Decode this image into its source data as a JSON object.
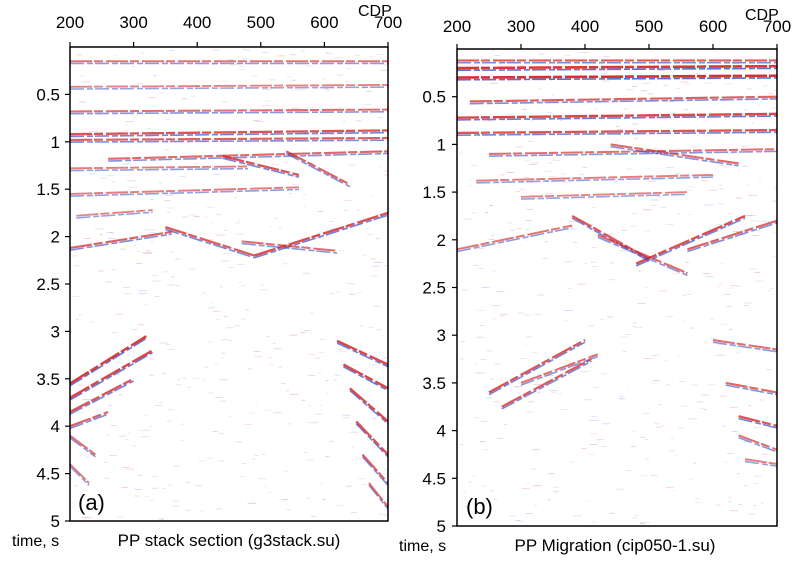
{
  "chart_data": [
    {
      "type": "heatmap",
      "panel_label": "(a)",
      "title": "PP stack section (g3stack.su)",
      "xlabel": "CDP",
      "ylabel": "time, s",
      "xlim": [
        200,
        700
      ],
      "ylim": [
        0,
        5
      ],
      "y_inverted": true,
      "x_axis_position": "top",
      "x_ticks": [
        200,
        300,
        400,
        500,
        600,
        700
      ],
      "x_tick_labels": [
        "200",
        "300",
        "400",
        "500",
        "600",
        "700"
      ],
      "y_ticks": [
        0.5,
        1,
        1.5,
        2,
        2.5,
        3,
        3.5,
        4,
        4.5,
        5
      ],
      "y_tick_labels": [
        "0.5",
        "1",
        "1.5",
        "2",
        "2.5",
        "3",
        "3.5",
        "4",
        "4.5",
        "5"
      ],
      "colormap": {
        "positive": "#d42020",
        "negative": "#3a4fc8",
        "zero": "#ffffff"
      },
      "events": [
        {
          "cdp": [
            200,
            700
          ],
          "t": [
            0.15,
            0.15
          ],
          "amp": 0.45
        },
        {
          "cdp": [
            200,
            700
          ],
          "t": [
            0.42,
            0.4
          ],
          "amp": 0.35
        },
        {
          "cdp": [
            200,
            700
          ],
          "t": [
            0.68,
            0.66
          ],
          "amp": 0.5
        },
        {
          "cdp": [
            200,
            700
          ],
          "t": [
            0.92,
            0.88
          ],
          "amp": 0.7
        },
        {
          "cdp": [
            200,
            700
          ],
          "t": [
            0.98,
            0.96
          ],
          "amp": 0.6
        },
        {
          "cdp": [
            260,
            700
          ],
          "t": [
            1.18,
            1.1
          ],
          "amp": 0.55
        },
        {
          "cdp": [
            200,
            480
          ],
          "t": [
            1.28,
            1.26
          ],
          "amp": 0.4
        },
        {
          "cdp": [
            440,
            560
          ],
          "t": [
            1.15,
            1.35
          ],
          "amp": 0.7
        },
        {
          "cdp": [
            540,
            640
          ],
          "t": [
            1.1,
            1.45
          ],
          "amp": 0.6
        },
        {
          "cdp": [
            200,
            560
          ],
          "t": [
            1.55,
            1.48
          ],
          "amp": 0.4
        },
        {
          "cdp": [
            210,
            330
          ],
          "t": [
            1.78,
            1.72
          ],
          "amp": 0.35
        },
        {
          "cdp": [
            200,
            360
          ],
          "t": [
            2.12,
            1.95
          ],
          "amp": 0.6
        },
        {
          "cdp": [
            350,
            490
          ],
          "t": [
            1.9,
            2.2
          ],
          "amp": 0.65
        },
        {
          "cdp": [
            490,
            700
          ],
          "t": [
            2.2,
            1.75
          ],
          "amp": 0.75
        },
        {
          "cdp": [
            470,
            620
          ],
          "t": [
            2.05,
            2.15
          ],
          "amp": 0.5
        },
        {
          "cdp": [
            200,
            320
          ],
          "t": [
            3.55,
            3.05
          ],
          "amp": 0.85
        },
        {
          "cdp": [
            200,
            330
          ],
          "t": [
            3.7,
            3.2
          ],
          "amp": 0.8
        },
        {
          "cdp": [
            200,
            300
          ],
          "t": [
            3.85,
            3.5
          ],
          "amp": 0.7
        },
        {
          "cdp": [
            200,
            260
          ],
          "t": [
            4.0,
            3.85
          ],
          "amp": 0.6
        },
        {
          "cdp": [
            620,
            700
          ],
          "t": [
            3.1,
            3.35
          ],
          "amp": 0.8
        },
        {
          "cdp": [
            630,
            700
          ],
          "t": [
            3.35,
            3.6
          ],
          "amp": 0.8
        },
        {
          "cdp": [
            640,
            700
          ],
          "t": [
            3.6,
            3.95
          ],
          "amp": 0.75
        },
        {
          "cdp": [
            650,
            700
          ],
          "t": [
            3.95,
            4.3
          ],
          "amp": 0.7
        },
        {
          "cdp": [
            660,
            700
          ],
          "t": [
            4.3,
            4.6
          ],
          "amp": 0.6
        },
        {
          "cdp": [
            670,
            700
          ],
          "t": [
            4.6,
            4.85
          ],
          "amp": 0.5
        },
        {
          "cdp": [
            200,
            240
          ],
          "t": [
            4.1,
            4.3
          ],
          "amp": 0.5
        },
        {
          "cdp": [
            200,
            230
          ],
          "t": [
            4.4,
            4.6
          ],
          "amp": 0.4
        }
      ]
    },
    {
      "type": "heatmap",
      "panel_label": "(b)",
      "title": "PP Migration (cip050-1.su)",
      "xlabel": "CDP",
      "ylabel": "time, s",
      "xlim": [
        200,
        700
      ],
      "ylim": [
        0,
        5
      ],
      "y_inverted": true,
      "x_axis_position": "top",
      "x_ticks": [
        200,
        300,
        400,
        500,
        600,
        700
      ],
      "x_tick_labels": [
        "200",
        "300",
        "400",
        "500",
        "600",
        "700"
      ],
      "y_ticks": [
        0.5,
        1,
        1.5,
        2,
        2.5,
        3,
        3.5,
        4,
        4.5,
        5
      ],
      "y_tick_labels": [
        "0.5",
        "1",
        "1.5",
        "2",
        "2.5",
        "3",
        "3.5",
        "4",
        "4.5",
        "5"
      ],
      "colormap": {
        "positive": "#d42020",
        "negative": "#3a4fc8",
        "zero": "#ffffff"
      },
      "events": [
        {
          "cdp": [
            200,
            700
          ],
          "t": [
            0.12,
            0.12
          ],
          "amp": 0.6
        },
        {
          "cdp": [
            200,
            700
          ],
          "t": [
            0.2,
            0.18
          ],
          "amp": 0.9
        },
        {
          "cdp": [
            200,
            700
          ],
          "t": [
            0.3,
            0.28
          ],
          "amp": 0.95
        },
        {
          "cdp": [
            220,
            700
          ],
          "t": [
            0.55,
            0.5
          ],
          "amp": 0.6
        },
        {
          "cdp": [
            200,
            700
          ],
          "t": [
            0.72,
            0.68
          ],
          "amp": 0.8
        },
        {
          "cdp": [
            200,
            700
          ],
          "t": [
            0.88,
            0.85
          ],
          "amp": 0.7
        },
        {
          "cdp": [
            250,
            700
          ],
          "t": [
            1.1,
            1.05
          ],
          "amp": 0.5
        },
        {
          "cdp": [
            440,
            640
          ],
          "t": [
            1.0,
            1.2
          ],
          "amp": 0.55
        },
        {
          "cdp": [
            230,
            600
          ],
          "t": [
            1.38,
            1.32
          ],
          "amp": 0.4
        },
        {
          "cdp": [
            300,
            560
          ],
          "t": [
            1.55,
            1.5
          ],
          "amp": 0.35
        },
        {
          "cdp": [
            200,
            380
          ],
          "t": [
            2.1,
            1.85
          ],
          "amp": 0.45
        },
        {
          "cdp": [
            380,
            500
          ],
          "t": [
            1.75,
            2.2
          ],
          "amp": 0.7
        },
        {
          "cdp": [
            480,
            650
          ],
          "t": [
            2.25,
            1.75
          ],
          "amp": 0.75
        },
        {
          "cdp": [
            560,
            700
          ],
          "t": [
            2.1,
            1.8
          ],
          "amp": 0.6
        },
        {
          "cdp": [
            420,
            560
          ],
          "t": [
            1.95,
            2.35
          ],
          "amp": 0.55
        },
        {
          "cdp": [
            250,
            400
          ],
          "t": [
            3.6,
            3.05
          ],
          "amp": 0.7
        },
        {
          "cdp": [
            270,
            410
          ],
          "t": [
            3.75,
            3.25
          ],
          "amp": 0.65
        },
        {
          "cdp": [
            300,
            420
          ],
          "t": [
            3.5,
            3.2
          ],
          "amp": 0.5
        },
        {
          "cdp": [
            600,
            700
          ],
          "t": [
            3.05,
            3.15
          ],
          "amp": 0.5
        },
        {
          "cdp": [
            620,
            700
          ],
          "t": [
            3.5,
            3.6
          ],
          "amp": 0.55
        },
        {
          "cdp": [
            640,
            700
          ],
          "t": [
            3.85,
            3.95
          ],
          "amp": 0.7
        },
        {
          "cdp": [
            640,
            700
          ],
          "t": [
            4.05,
            4.2
          ],
          "amp": 0.5
        },
        {
          "cdp": [
            650,
            700
          ],
          "t": [
            4.3,
            4.35
          ],
          "amp": 0.4
        }
      ]
    }
  ],
  "colors": {
    "frame": "#000000",
    "background": "#ffffff",
    "positive": "#d42020",
    "negative": "#3a4fc8"
  }
}
